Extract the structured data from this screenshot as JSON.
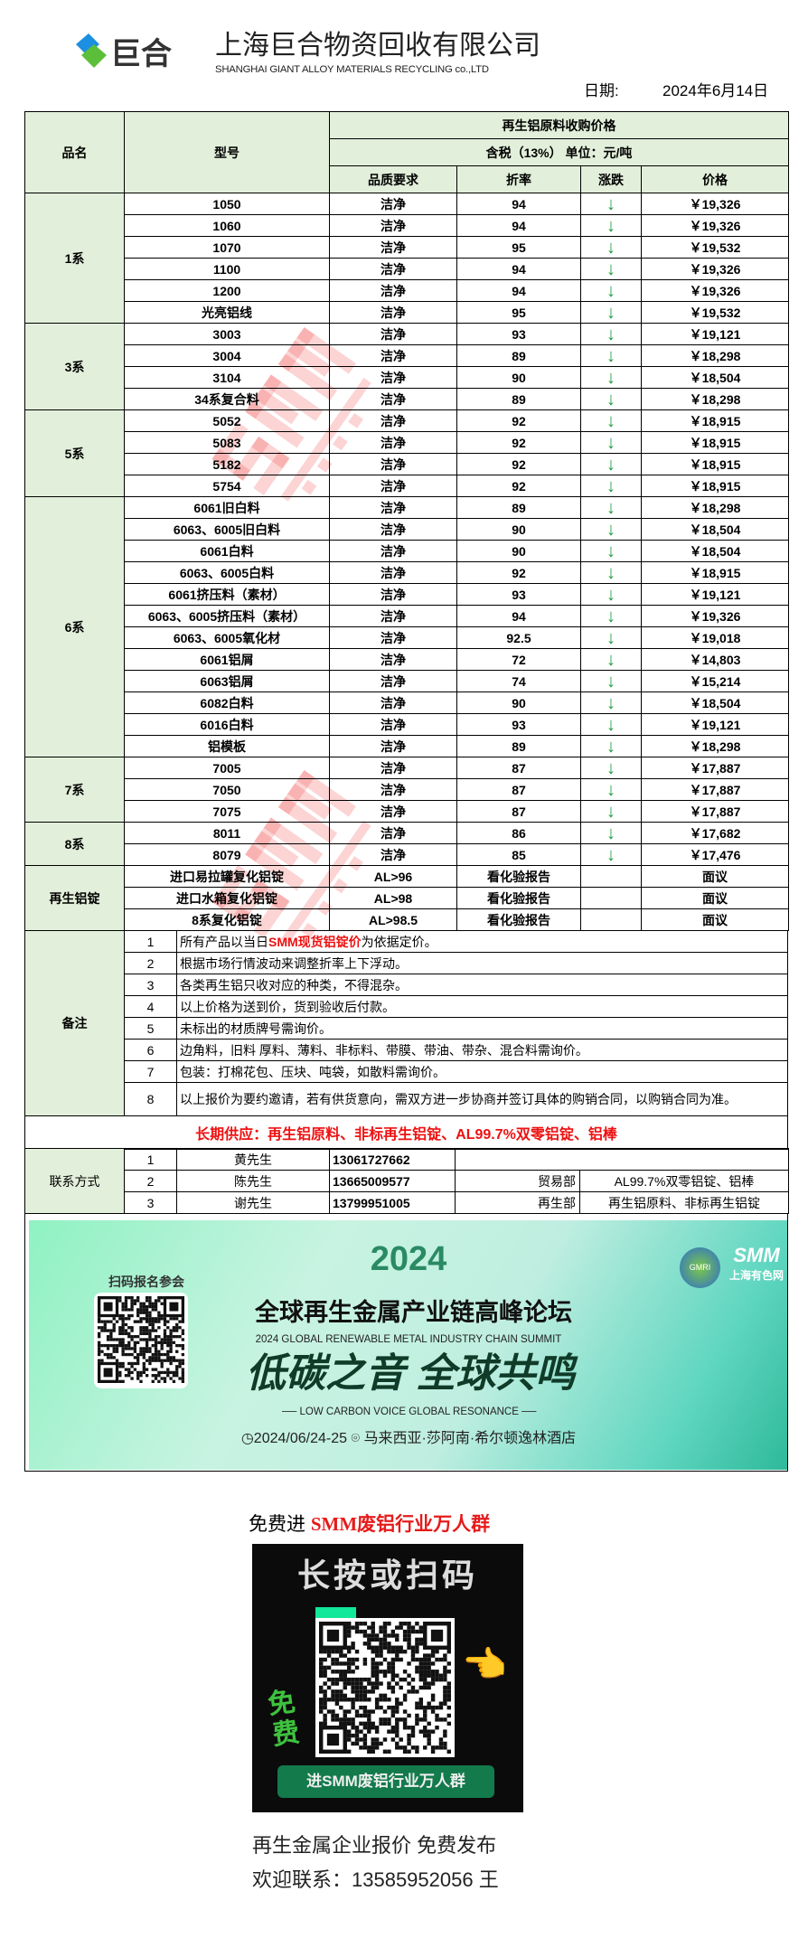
{
  "header": {
    "logo_text": "巨合",
    "company_cn": "上海巨合物资回收有限公司",
    "company_en": "SHANGHAI GIANT ALLOY MATERIALS RECYCLING co.,LTD",
    "date_label": "日期:",
    "date_value": "2024年6月14日"
  },
  "table": {
    "col_name": "品名",
    "col_model": "型号",
    "title": "再生铝原料收购价格",
    "subtitle": "含税（13%） 单位：元/吨",
    "col_quality": "品质要求",
    "col_rate": "折率",
    "col_change": "涨跌",
    "col_price": "价格",
    "groups": [
      {
        "name": "1系",
        "rows": [
          {
            "model": "1050",
            "quality": "洁净",
            "rate": "94",
            "change": "down",
            "price": "￥19,326"
          },
          {
            "model": "1060",
            "quality": "洁净",
            "rate": "94",
            "change": "down",
            "price": "￥19,326"
          },
          {
            "model": "1070",
            "quality": "洁净",
            "rate": "95",
            "change": "down",
            "price": "￥19,532"
          },
          {
            "model": "1100",
            "quality": "洁净",
            "rate": "94",
            "change": "down",
            "price": "￥19,326"
          },
          {
            "model": "1200",
            "quality": "洁净",
            "rate": "94",
            "change": "down",
            "price": "￥19,326"
          },
          {
            "model": "光亮铝线",
            "quality": "洁净",
            "rate": "95",
            "change": "down",
            "price": "￥19,532"
          }
        ]
      },
      {
        "name": "3系",
        "rows": [
          {
            "model": "3003",
            "quality": "洁净",
            "rate": "93",
            "change": "down",
            "price": "￥19,121"
          },
          {
            "model": "3004",
            "quality": "洁净",
            "rate": "89",
            "change": "down",
            "price": "￥18,298"
          },
          {
            "model": "3104",
            "quality": "洁净",
            "rate": "90",
            "change": "down",
            "price": "￥18,504"
          },
          {
            "model": "34系复合料",
            "quality": "洁净",
            "rate": "89",
            "change": "down",
            "price": "￥18,298"
          }
        ]
      },
      {
        "name": "5系",
        "rows": [
          {
            "model": "5052",
            "quality": "洁净",
            "rate": "92",
            "change": "down",
            "price": "￥18,915"
          },
          {
            "model": "5083",
            "quality": "洁净",
            "rate": "92",
            "change": "down",
            "price": "￥18,915"
          },
          {
            "model": "5182",
            "quality": "洁净",
            "rate": "92",
            "change": "down",
            "price": "￥18,915"
          },
          {
            "model": "5754",
            "quality": "洁净",
            "rate": "92",
            "change": "down",
            "price": "￥18,915"
          }
        ]
      },
      {
        "name": "6系",
        "rows": [
          {
            "model": "6061旧白料",
            "quality": "洁净",
            "rate": "89",
            "change": "down",
            "price": "￥18,298"
          },
          {
            "model": "6063、6005旧白料",
            "quality": "洁净",
            "rate": "90",
            "change": "down",
            "price": "￥18,504"
          },
          {
            "model": "6061白料",
            "quality": "洁净",
            "rate": "90",
            "change": "down",
            "price": "￥18,504"
          },
          {
            "model": "6063、6005白料",
            "quality": "洁净",
            "rate": "92",
            "change": "down",
            "price": "￥18,915"
          },
          {
            "model": "6061挤压料（素材）",
            "quality": "洁净",
            "rate": "93",
            "change": "down",
            "price": "￥19,121"
          },
          {
            "model": "6063、6005挤压料（素材）",
            "quality": "洁净",
            "rate": "94",
            "change": "down",
            "price": "￥19,326"
          },
          {
            "model": "6063、6005氧化材",
            "quality": "洁净",
            "rate": "92.5",
            "change": "down",
            "price": "￥19,018"
          },
          {
            "model": "6061铝屑",
            "quality": "洁净",
            "rate": "72",
            "change": "down",
            "price": "￥14,803"
          },
          {
            "model": "6063铝屑",
            "quality": "洁净",
            "rate": "74",
            "change": "down",
            "price": "￥15,214"
          },
          {
            "model": "6082白料",
            "quality": "洁净",
            "rate": "90",
            "change": "down",
            "price": "￥18,504"
          },
          {
            "model": "6016白料",
            "quality": "洁净",
            "rate": "93",
            "change": "down",
            "price": "￥19,121"
          },
          {
            "model": "铝模板",
            "quality": "洁净",
            "rate": "89",
            "change": "down",
            "price": "￥18,298"
          }
        ]
      },
      {
        "name": "7系",
        "rows": [
          {
            "model": "7005",
            "quality": "洁净",
            "rate": "87",
            "change": "down",
            "price": "￥17,887"
          },
          {
            "model": "7050",
            "quality": "洁净",
            "rate": "87",
            "change": "down",
            "price": "￥17,887"
          },
          {
            "model": "7075",
            "quality": "洁净",
            "rate": "87",
            "change": "down",
            "price": "￥17,887"
          }
        ]
      },
      {
        "name": "8系",
        "rows": [
          {
            "model": "8011",
            "quality": "洁净",
            "rate": "86",
            "change": "down",
            "price": "￥17,682"
          },
          {
            "model": "8079",
            "quality": "洁净",
            "rate": "85",
            "change": "down",
            "price": "￥17,476"
          }
        ]
      },
      {
        "name": "再生铝锭",
        "rows": [
          {
            "model": "进口易拉罐复化铝锭",
            "quality": "AL>96",
            "rate": "看化验报告",
            "change": "",
            "price": "面议"
          },
          {
            "model": "进口水箱复化铝锭",
            "quality": "AL>98",
            "rate": "看化验报告",
            "change": "",
            "price": "面议"
          },
          {
            "model": "8系复化铝锭",
            "quality": "AL>98.5",
            "rate": "看化验报告",
            "change": "",
            "price": "面议"
          }
        ]
      }
    ],
    "change_color": "#1f9a3e"
  },
  "notes": {
    "label": "备注",
    "items": [
      {
        "num": "1",
        "pre": "所有产品以当日",
        "highlight": "SMM现货铝锭价",
        "post": "为依据定价。"
      },
      {
        "num": "2",
        "pre": "根据市场行情波动来调整折率上下浮动。",
        "highlight": "",
        "post": ""
      },
      {
        "num": "3",
        "pre": "各类再生铝只收对应的种类，不得混杂。",
        "highlight": "",
        "post": ""
      },
      {
        "num": "4",
        "pre": "以上价格为送到价，货到验收后付款。",
        "highlight": "",
        "post": ""
      },
      {
        "num": "5",
        "pre": "未标出的材质牌号需询价。",
        "highlight": "",
        "post": ""
      },
      {
        "num": "6",
        "pre": "边角料，旧料 厚料、薄料、非标料、带膜、带油、带杂、混合料需询价。",
        "highlight": "",
        "post": ""
      },
      {
        "num": "7",
        "pre": "包装：打棉花包、压块、吨袋，如散料需询价。",
        "highlight": "",
        "post": ""
      },
      {
        "num": "8",
        "pre": "以上报价为要约邀请，若有供货意向，需双方进一步协商并签订具体的购销合同，以购销合同为准。",
        "highlight": "",
        "post": ""
      }
    ]
  },
  "supply": "长期供应：再生铝原料、非标再生铝锭、AL99.7%双零铝锭、铝棒",
  "contacts": {
    "label": "联系方式",
    "items": [
      {
        "num": "1",
        "name": "黄先生",
        "phone": "13061727662",
        "dept": "",
        "products": ""
      },
      {
        "num": "2",
        "name": "陈先生",
        "phone": "13665009577",
        "dept": "贸易部",
        "products": "AL99.7%双零铝锭、铝棒"
      },
      {
        "num": "3",
        "name": "谢先生",
        "phone": "13799951005",
        "dept": "再生部",
        "products": "再生铝原料、非标再生铝锭"
      }
    ]
  },
  "watermark": "SMM 上海有色网",
  "banner": {
    "year": "2024",
    "scan_label": "扫码报名参会",
    "title_cn": "全球再生金属产业链高峰论坛",
    "title_en": "2024 GLOBAL RENEWABLE METAL INDUSTRY CHAIN SUMMIT",
    "slogan": "低碳之音 全球共鸣",
    "slogan_en": "LOW CARBON VOICE GLOBAL RESONANCE",
    "date": "2024/06/24-25",
    "venue": "马来西亚·莎阿南·希尔顿逸林酒店",
    "logo_smm": "SMM",
    "logo_smm_sub": "上海有色网",
    "logo_gmri": "GMRI"
  },
  "promo": {
    "pre": "免费进 ",
    "highlight": "SMM废铝行业万人群",
    "qr_title": "长按或扫码",
    "qr_badge": "免费",
    "qr_button": "进SMM废铝行业万人群",
    "line1": "再生金属企业报价 免费发布",
    "line2": "欢迎联系：13585952056 王"
  }
}
